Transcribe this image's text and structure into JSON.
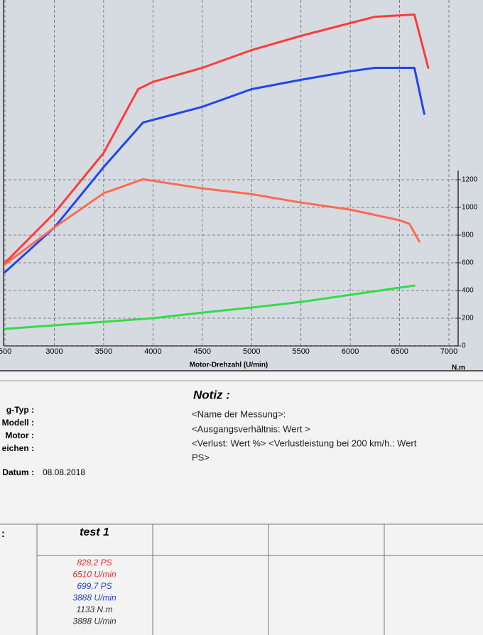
{
  "chart_data": {
    "type": "line",
    "xlabel": "Motor-Drehzahl (U/min)",
    "y2unit": "N.m",
    "xlim": [
      2450,
      7000
    ],
    "xticks": [
      {
        "value": 2500,
        "label": "500"
      },
      3000,
      3500,
      4000,
      4500,
      5000,
      5500,
      6000,
      6500,
      7000
    ],
    "ylim": [
      0,
      2500
    ],
    "yticks": [
      0,
      200,
      400,
      600,
      800,
      1000,
      1200
    ],
    "grid": true,
    "series": [
      {
        "color": "#ff3b3b",
        "x": [
          2500,
          3000,
          3500,
          3850,
          4000,
          4500,
          5000,
          5500,
          6000,
          6250,
          6650,
          6790
        ],
        "values": [
          600,
          960,
          1395,
          1856,
          1908,
          2010,
          2138,
          2241,
          2333,
          2379,
          2395,
          2010
        ]
      },
      {
        "color": "#2244ee",
        "x": [
          2500,
          3000,
          3500,
          3900,
          4500,
          5000,
          5500,
          6000,
          6250,
          6650,
          6750
        ],
        "values": [
          533,
          856,
          1292,
          1615,
          1728,
          1856,
          1923,
          1985,
          2010,
          2010,
          1677
        ]
      },
      {
        "color": "#ff6a50",
        "x": [
          2500,
          3000,
          3500,
          3900,
          4500,
          5000,
          5500,
          6000,
          6500,
          6600,
          6700
        ],
        "values": [
          590,
          856,
          1103,
          1205,
          1138,
          1097,
          1036,
          985,
          908,
          882,
          754
        ]
      },
      {
        "color": "#33dd44",
        "x": [
          2500,
          3000,
          3500,
          4000,
          4500,
          5000,
          5500,
          6000,
          6500,
          6650
        ],
        "values": [
          123,
          149,
          174,
          200,
          241,
          277,
          318,
          369,
          421,
          436
        ]
      }
    ]
  },
  "form": {
    "fields": [
      "g-Typ :",
      "Modell :",
      "Motor :",
      "eichen :"
    ],
    "date_label": "Datum :",
    "date": "08.08.2018",
    "note_title": "Notiz :",
    "note_lines": [
      "<Name der Messung>:",
      "<Ausgangsverhältnis: Wert  >",
      "<Verlust: Wert %>  <Verlustleistung bei 200 km/h.: Wert",
      "PS>"
    ]
  },
  "table": {
    "row_label": ":",
    "header": "test 1",
    "results": [
      {
        "text": "828,2 PS",
        "color": "#e03030"
      },
      {
        "text": "6510 U/min",
        "color": "#e03030"
      },
      {
        "text": "699,7 PS",
        "color": "#2244cc"
      },
      {
        "text": "3888 U/min",
        "color": "#2244cc"
      },
      {
        "text": "1133 N.m",
        "color": "#333333"
      },
      {
        "text": "3888 U/min",
        "color": "#333333"
      }
    ]
  }
}
